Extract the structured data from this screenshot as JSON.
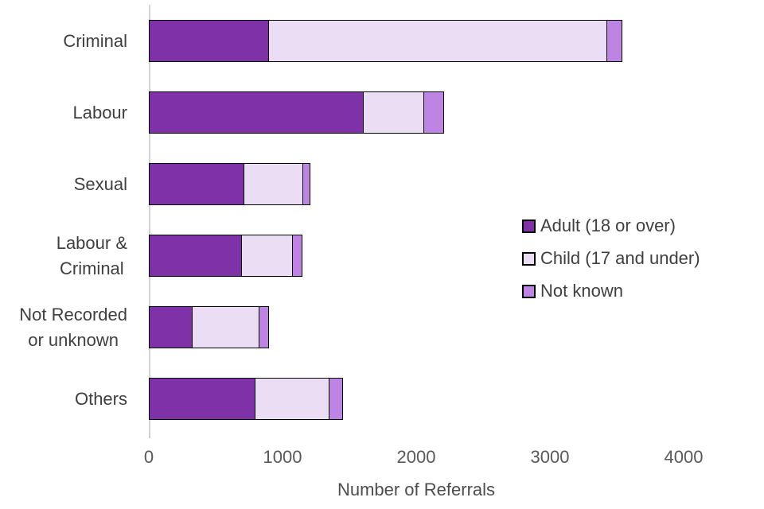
{
  "chart_data": {
    "type": "bar",
    "orientation": "horizontal",
    "stacked": true,
    "title": "",
    "xlabel": "Number of Referrals",
    "ylabel": "",
    "xlim": [
      0,
      4000
    ],
    "xticks": [
      0,
      1000,
      2000,
      3000,
      4000
    ],
    "grid": false,
    "legend_position": "center-right",
    "categories": [
      "Criminal",
      "Labour",
      "Sexual",
      "Labour &\nCriminal",
      "Not Recorded\nor unknown",
      "Others"
    ],
    "series": [
      {
        "name": "Adult (18 or over)",
        "color": "#7f31a8",
        "values": [
          900,
          1610,
          720,
          700,
          330,
          800
        ]
      },
      {
        "name": "Child (17 and under)",
        "color": "#eaddf4",
        "values": [
          2540,
          460,
          445,
          390,
          510,
          565
        ]
      },
      {
        "name": "Not known",
        "color": "#be84e3",
        "values": [
          120,
          160,
          60,
          75,
          80,
          105
        ]
      }
    ]
  },
  "colors": {
    "bar_border": "#000000",
    "axis_line": "#d6d3d8",
    "category_text": "#3f3f3f",
    "tick_text": "#595959",
    "axis_title_text": "#4d4d4d"
  }
}
